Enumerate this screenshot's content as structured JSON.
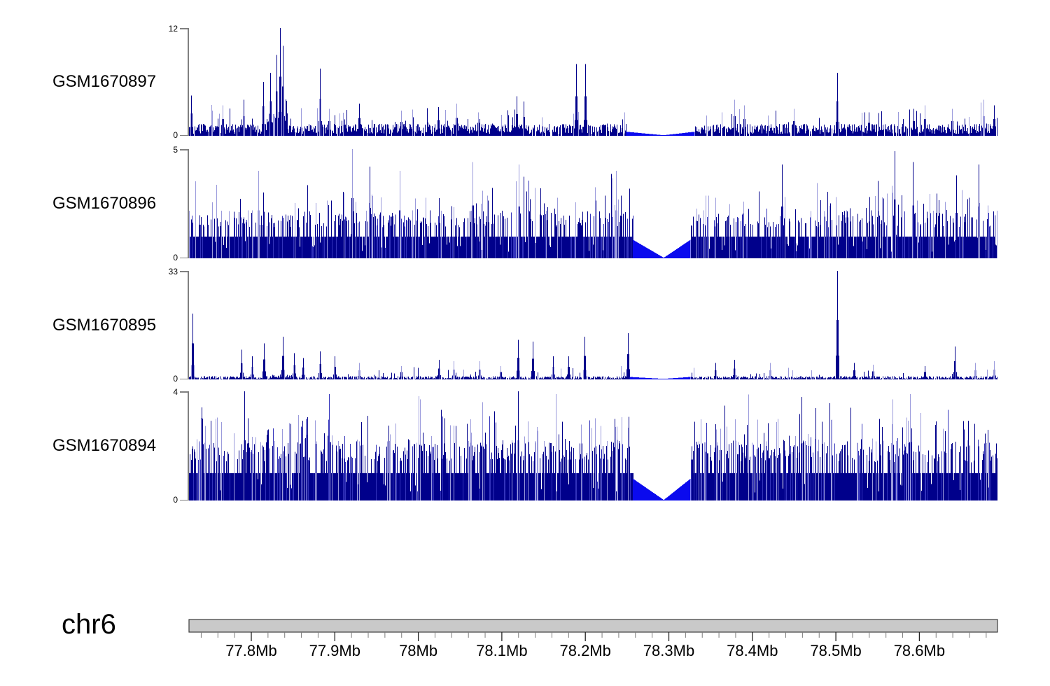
{
  "figure": {
    "chromosome_label": "chr6",
    "colors": {
      "signal_dark": "#00008B",
      "signal_mid": "#3333BB",
      "signal_light": "#9B9BDC",
      "gap_wedge": "#0A0AEE",
      "y_axis": "#808080",
      "ideogram_fill": "#C9C9C9",
      "ideogram_border": "#3C3C3C",
      "tick_major": "#222222",
      "tick_minor": "#7A7A7A",
      "text": "#000000"
    }
  },
  "chart_data": {
    "type": "area",
    "subtype": "genome-coverage-tracks",
    "chromosome": "chr6",
    "x_units": "Mb",
    "x_range_mb": [
      77.7254,
      78.6936
    ],
    "genome_axis": {
      "major_tick_mb": [
        77.8,
        77.9,
        78.0,
        78.1,
        78.2,
        78.3,
        78.4,
        78.5,
        78.6
      ],
      "major_tick_labels": [
        "77.8Mb",
        "77.9Mb",
        "78Mb",
        "78.1Mb",
        "78.2Mb",
        "78.3Mb",
        "78.4Mb",
        "78.5Mb",
        "78.6Mb"
      ],
      "minor_tick_step_mb": 0.02,
      "minor_tick_start_mb": 77.74,
      "minor_tick_end_mb": 78.68
    },
    "gap_region": {
      "center_mb": 78.294,
      "note": "coverage tapers linearly to zero in uncovered interval"
    },
    "y_zero_label": "0",
    "tracks": [
      {
        "name": "GSM1670897",
        "ymax": 12,
        "ymax_label": "12",
        "profile": "sparse",
        "seed": 1011,
        "light_thresh": 2.0,
        "texture": {
          "zero_p": 0.07,
          "base": [
            0.22,
            1.35
          ],
          "spike_p": 0.055,
          "spike": [
            0.7,
            2.4
          ]
        },
        "clusters": [
          {
            "start_mb": 77.818,
            "end_mb": 77.844,
            "add": 1.6
          }
        ],
        "gap": {
          "start_mb": 78.249,
          "end_mb": 78.331,
          "edge_v": 0.45
        },
        "peaks_mb": [
          [
            77.728,
            4.5
          ],
          [
            77.766,
            3.4
          ],
          [
            77.791,
            4.0
          ],
          [
            77.814,
            6.0
          ],
          [
            77.823,
            7.0
          ],
          [
            77.83,
            9.0
          ],
          [
            77.834,
            12.0
          ],
          [
            77.838,
            10.0
          ],
          [
            77.882,
            7.5
          ],
          [
            77.893,
            3.0
          ],
          [
            77.929,
            3.6
          ],
          [
            77.979,
            2.8
          ],
          [
            78.024,
            3.2
          ],
          [
            78.046,
            3.6
          ],
          [
            78.072,
            2.6
          ],
          [
            78.118,
            4.4
          ],
          [
            78.126,
            3.8
          ],
          [
            78.189,
            8.0
          ],
          [
            78.2,
            8.0
          ],
          [
            78.253,
            5.5
          ],
          [
            78.378,
            4.0
          ],
          [
            78.39,
            3.4
          ],
          [
            78.45,
            3.0
          ],
          [
            78.502,
            7.0
          ],
          [
            78.539,
            2.6
          ],
          [
            78.593,
            3.0
          ],
          [
            78.606,
            3.4
          ],
          [
            78.639,
            3.0
          ],
          [
            78.677,
            4.0
          ],
          [
            78.689,
            3.4
          ]
        ]
      },
      {
        "name": "GSM1670896",
        "ymax": 5,
        "ymax_label": "5",
        "profile": "dense",
        "seed": 2022,
        "light_thresh": 2.15,
        "texture": {
          "p2": 0.42,
          "p3": 0.08,
          "p4": 0.018,
          "p_dip": 0.05
        },
        "clusters": [],
        "gap": {
          "start_mb": 78.257,
          "end_mb": 78.326,
          "edge_v": 0.85
        },
        "peaks_mb": [
          [
            77.808,
            4.0
          ],
          [
            77.921,
            5.0
          ],
          [
            77.942,
            4.2
          ],
          [
            77.978,
            4.0
          ],
          [
            78.065,
            4.4
          ],
          [
            78.12,
            4.3
          ],
          [
            78.237,
            4.0
          ],
          [
            78.435,
            4.3
          ],
          [
            78.57,
            4.9
          ],
          [
            78.592,
            4.4
          ],
          [
            78.644,
            3.8
          ],
          [
            78.671,
            4.3
          ]
        ]
      },
      {
        "name": "GSM1670895",
        "ymax": 33,
        "ymax_label": "33",
        "profile": "sparse",
        "seed": 3033,
        "light_thresh": 2.6,
        "texture": {
          "zero_p": 0.1,
          "base": [
            0.15,
            1.0
          ],
          "spike_p": 0.045,
          "spike": [
            0.8,
            3.2
          ]
        },
        "clusters": [
          {
            "start_mb": 77.824,
            "end_mb": 77.85,
            "add": 0.6
          }
        ],
        "gap": {
          "start_mb": 78.253,
          "end_mb": 78.326,
          "edge_v": 0.75
        },
        "peaks_mb": [
          [
            77.73,
            20
          ],
          [
            77.788,
            9
          ],
          [
            77.801,
            7
          ],
          [
            77.815,
            11
          ],
          [
            77.838,
            13
          ],
          [
            77.851,
            8
          ],
          [
            77.862,
            6.5
          ],
          [
            77.882,
            8.5
          ],
          [
            77.9,
            7
          ],
          [
            77.929,
            5
          ],
          [
            77.979,
            4
          ],
          [
            78.025,
            6
          ],
          [
            78.042,
            5.5
          ],
          [
            78.073,
            5.5
          ],
          [
            78.098,
            4
          ],
          [
            78.119,
            12
          ],
          [
            78.137,
            11.5
          ],
          [
            78.161,
            7
          ],
          [
            78.18,
            7
          ],
          [
            78.199,
            13
          ],
          [
            78.251,
            14
          ],
          [
            78.356,
            5
          ],
          [
            78.378,
            6
          ],
          [
            78.421,
            5
          ],
          [
            78.502,
            33
          ],
          [
            78.522,
            5
          ],
          [
            78.544,
            4.5
          ],
          [
            78.606,
            4
          ],
          [
            78.642,
            10
          ],
          [
            78.667,
            5
          ],
          [
            78.689,
            5.5
          ]
        ]
      },
      {
        "name": "GSM1670894",
        "ymax": 4,
        "ymax_label": "4",
        "profile": "dense",
        "seed": 4044,
        "light_thresh": 2.1,
        "texture": {
          "p2": 0.52,
          "p3": 0.12,
          "p4": 0.02,
          "p_dip": 0.04
        },
        "clusters": [],
        "gap": {
          "start_mb": 78.257,
          "end_mb": 78.326,
          "edge_v": 0.8
        },
        "peaks_mb": [
          [
            77.792,
            4.0
          ],
          [
            77.893,
            3.9
          ],
          [
            78.002,
            3.7
          ],
          [
            78.077,
            3.6
          ],
          [
            78.119,
            4.0
          ],
          [
            78.459,
            3.8
          ],
          [
            78.568,
            3.7
          ],
          [
            78.589,
            3.9
          ]
        ]
      }
    ]
  }
}
